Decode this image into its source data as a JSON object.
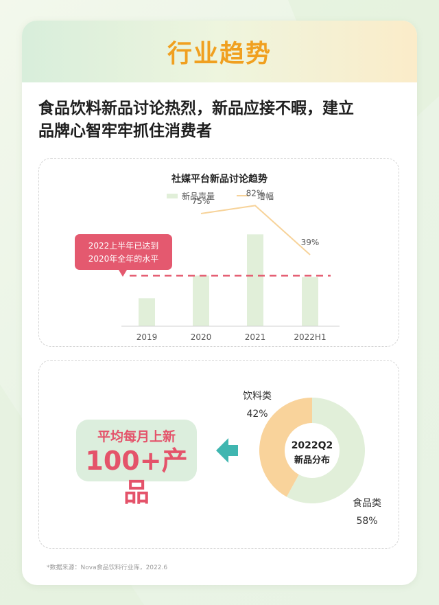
{
  "header": {
    "title": "行业趋势"
  },
  "headline": {
    "line1": "食品饮料新品讨论热烈，新品应接不暇，建立",
    "line2": "品牌心智牢牢抓住消费者"
  },
  "callout": {
    "line1": "2022上半年已达到",
    "line2": "2020年全年的水平"
  },
  "badge": {
    "line1": "平均每月上新",
    "line2": "100+产品"
  },
  "source": "*数据来源：Nova食品饮料行业库，2022.6",
  "colors": {
    "accent_orange": "#f0a020",
    "bar_green": "#e1efd9",
    "line_orange": "#f7d39a",
    "callout_red": "#e4596f",
    "dashed_red": "#e4596f",
    "teal_arrow": "#3fb6b0",
    "donut_green": "#e1efd9",
    "donut_orange": "#f9d39b"
  },
  "chart_data": [
    {
      "type": "bar",
      "title": "社媒平台新品讨论趋势",
      "categories": [
        "2019",
        "2020",
        "2021",
        "2022H1"
      ],
      "series": [
        {
          "name": "新品声量",
          "type": "bar",
          "values": [
            21,
            38,
            69,
            37
          ]
        },
        {
          "name": "增幅",
          "type": "line",
          "values": [
            null,
            75,
            82,
            39
          ],
          "labels": [
            "",
            "75%",
            "82%",
            "39%"
          ]
        }
      ],
      "reference_line": {
        "value": 38,
        "style": "dashed"
      },
      "legend": "top"
    },
    {
      "type": "pie",
      "title": "2022Q2 新品分布",
      "center_line1": "2022Q2",
      "center_line2": "新品分布",
      "slices": [
        {
          "label": "饮料类",
          "value": 42,
          "value_label": "42%"
        },
        {
          "label": "食品类",
          "value": 58,
          "value_label": "58%"
        }
      ]
    }
  ]
}
